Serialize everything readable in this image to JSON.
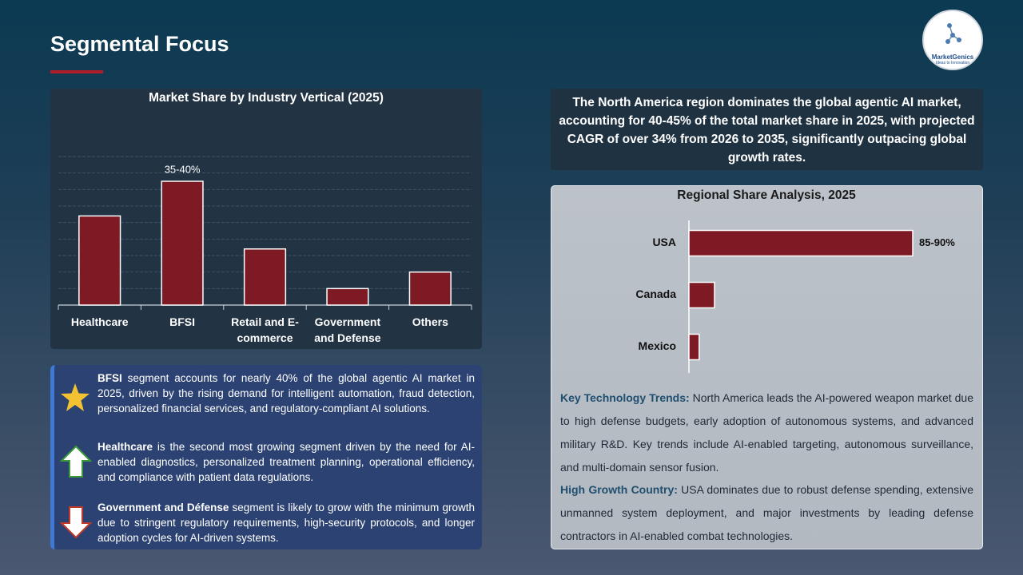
{
  "header": {
    "title": "Segmental Focus",
    "logo": {
      "name": "MarketGenics",
      "tagline": "Ideas to Innovation"
    }
  },
  "chart_data": [
    {
      "type": "bar",
      "title": "Market Share by Industry Vertical (2025)",
      "categories": [
        "Healthcare",
        "BFSI",
        "Retail and E-commerce",
        "Government and Defense",
        "Others"
      ],
      "values": [
        27,
        37.5,
        17,
        5,
        10
      ],
      "value_labels": [
        null,
        "35-40%",
        null,
        null,
        null
      ],
      "color": "#7d1a24",
      "ylim": [
        0,
        45
      ],
      "yticks": [
        0,
        5,
        10,
        15,
        20,
        25,
        30,
        35,
        40,
        45
      ],
      "grid": true
    },
    {
      "type": "barh",
      "title": "Regional Share Analysis, 2025",
      "categories": [
        "USA",
        "Canada",
        "Mexico"
      ],
      "values": [
        87.5,
        10,
        4
      ],
      "value_labels": [
        "85-90%",
        null,
        null
      ],
      "color": "#7d1a24",
      "xlim": [
        0,
        100
      ]
    }
  ],
  "highlights": [
    {
      "bold": "BFSI",
      "text": "segment accounts for nearly 40% of the global agentic AI market in 2025, driven by the rising demand for intelligent automation, fraud detection, personalized financial services, and regulatory-compliant AI solutions."
    },
    {
      "bold": "Healthcare",
      "text": "is the second most growing segment driven by the need for AI-enabled diagnostics, personalized treatment planning, operational efficiency, and compliance with patient data regulations."
    },
    {
      "bold": "Government and Défense",
      "text": "segment is likely to grow with the minimum growth due to stringent regulatory requirements, high-security protocols, and longer adoption cycles for AI-driven systems."
    }
  ],
  "summary": "The North America region dominates the global agentic AI market, accounting for 40-45% of the total market share in 2025, with projected CAGR of over 34% from 2026 to 2035, significantly outpacing global growth rates.",
  "notes": [
    {
      "heading": "Key Technology Trends:",
      "text": "North America leads the AI-powered weapon market due to high defense budgets, early adoption of autonomous systems, and advanced military R&D. Key trends include AI-enabled targeting, autonomous surveillance, and multi-domain sensor fusion."
    },
    {
      "heading": "High Growth Country:",
      "text": "USA dominates due to robust defense spending, extensive unmanned system deployment, and major investments by leading defense contractors in AI-enabled combat technologies."
    }
  ]
}
